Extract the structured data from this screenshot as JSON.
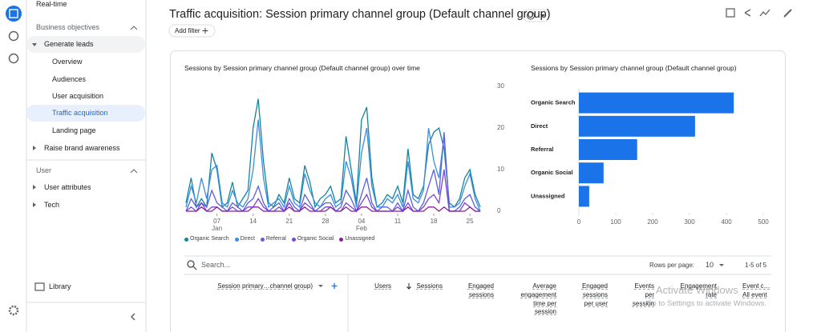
{
  "sidebar": {
    "items": [
      "Real-time",
      "Business objectives",
      "Generate leads",
      "Overview",
      "Audiences",
      "User acquisition",
      "Traffic acquisition",
      "Landing page",
      "Raise brand awareness",
      "User",
      "User attributes",
      "Tech",
      "Library"
    ]
  },
  "header": {
    "title": "Traffic acquisition: Session primary channel group (Default channel group)",
    "add_filter": "Add filter"
  },
  "chart_data": [
    {
      "type": "line",
      "title": "Sessions by Session primary channel group (Default channel group) over time",
      "categories": [
        null,
        null,
        null,
        null,
        null,
        null,
        "07\nJan",
        null,
        null,
        null,
        null,
        null,
        null,
        "14",
        null,
        null,
        null,
        null,
        null,
        null,
        "21",
        null,
        null,
        null,
        null,
        null,
        null,
        "28",
        null,
        null,
        null,
        null,
        null,
        null,
        "04\nFeb",
        null,
        null,
        null,
        null,
        null,
        null,
        "11",
        null,
        null,
        null,
        null,
        null,
        null,
        "18",
        null,
        null,
        null,
        null,
        null,
        null,
        "25",
        null,
        null
      ],
      "ylim": [
        0,
        30
      ],
      "yticks": [
        0,
        10,
        20,
        30
      ],
      "grid": false,
      "series": [
        {
          "name": "Organic Search",
          "color": "#12849f",
          "values": [
            2,
            8,
            1,
            3,
            1,
            14,
            10,
            1,
            2,
            7,
            1,
            3,
            5,
            20,
            27,
            12,
            2,
            1,
            4,
            2,
            8,
            3,
            2,
            11,
            7,
            1,
            3,
            4,
            6,
            2,
            3,
            18,
            10,
            2,
            22,
            25,
            8,
            1,
            2,
            4,
            3,
            6,
            2,
            15,
            4,
            3,
            6,
            16,
            19,
            20,
            15,
            2,
            1,
            3,
            8,
            10,
            4,
            1
          ]
        },
        {
          "name": "Direct",
          "color": "#3b8de0",
          "values": [
            1,
            6,
            2,
            8,
            3,
            10,
            11,
            2,
            1,
            5,
            2,
            1,
            3,
            10,
            22,
            8,
            1,
            2,
            3,
            1,
            6,
            2,
            1,
            9,
            5,
            2,
            1,
            3,
            4,
            1,
            2,
            12,
            8,
            1,
            14,
            20,
            6,
            1,
            1,
            3,
            2,
            4,
            1,
            12,
            3,
            2,
            5,
            20,
            12,
            8,
            18,
            1,
            1,
            2,
            6,
            9,
            3,
            0
          ]
        },
        {
          "name": "Referral",
          "color": "#5b5fe0",
          "values": [
            0,
            3,
            1,
            2,
            1,
            5,
            2,
            1,
            0,
            2,
            1,
            0,
            2,
            3,
            6,
            2,
            0,
            1,
            2,
            0,
            3,
            1,
            0,
            4,
            2,
            0,
            1,
            2,
            2,
            0,
            1,
            5,
            3,
            0,
            4,
            8,
            2,
            0,
            1,
            1,
            0,
            2,
            0,
            5,
            1,
            0,
            2,
            6,
            10,
            4,
            19,
            0,
            0,
            1,
            3,
            4,
            1,
            0
          ]
        },
        {
          "name": "Organic Social",
          "color": "#7a45d6",
          "values": [
            0,
            1,
            0,
            2,
            0,
            1,
            1,
            0,
            0,
            1,
            0,
            0,
            1,
            1,
            3,
            1,
            0,
            0,
            1,
            0,
            2,
            0,
            0,
            2,
            1,
            0,
            0,
            1,
            1,
            0,
            0,
            2,
            1,
            0,
            2,
            4,
            1,
            0,
            0,
            0,
            0,
            1,
            0,
            2,
            0,
            0,
            1,
            3,
            4,
            2,
            10,
            0,
            0,
            0,
            2,
            1,
            0,
            0
          ]
        },
        {
          "name": "Unassigned",
          "color": "#8a1f9c",
          "values": [
            0,
            0,
            0,
            1,
            0,
            0,
            1,
            0,
            0,
            0,
            0,
            0,
            0,
            1,
            1,
            0,
            0,
            0,
            0,
            0,
            1,
            0,
            0,
            1,
            0,
            0,
            0,
            0,
            1,
            0,
            0,
            1,
            0,
            0,
            1,
            1,
            0,
            0,
            0,
            0,
            0,
            0,
            0,
            1,
            0,
            0,
            0,
            1,
            1,
            0,
            1,
            0,
            0,
            0,
            0,
            1,
            0,
            0
          ]
        }
      ]
    },
    {
      "type": "hbar",
      "title": "Sessions by Session primary channel group (Default channel group)",
      "categories": [
        "Organic Search",
        "Direct",
        "Referral",
        "Organic Social",
        "Unassigned"
      ],
      "values": [
        420,
        315,
        158,
        67,
        28
      ],
      "color": "#1a73e8",
      "xlim": [
        0,
        500
      ],
      "xticks": [
        0,
        100,
        200,
        300,
        400,
        500
      ]
    }
  ],
  "table": {
    "search_placeholder": "Search...",
    "rows_per_page_label": "Rows per page:",
    "rows_per_page": 10,
    "range": "1-5 of 5",
    "columns": [
      "Session primary…channel group)",
      "Users",
      "Sessions",
      "Engaged sessions",
      "Average engagement time per session",
      "Engaged sessions per user",
      "Events per session",
      "Engagement rate",
      "Event c… All event"
    ]
  },
  "watermark": {
    "line1": "Activate Windows",
    "line2": "Go to Settings to activate Windows."
  }
}
